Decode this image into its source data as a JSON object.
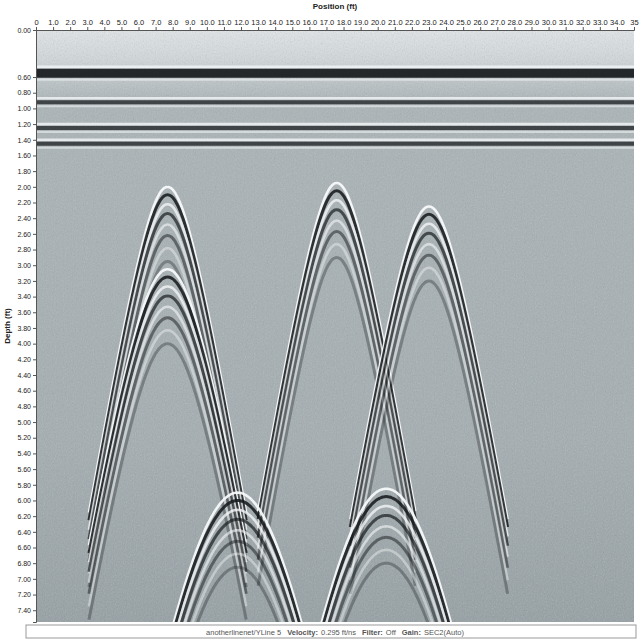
{
  "chart_data": {
    "type": "radargram",
    "x_label": "Position (ft)",
    "y_label": "Depth (ft)",
    "xlim": [
      0,
      35
    ],
    "ylim": [
      0,
      7.55
    ],
    "xticks": [
      0,
      {
        "value": 1,
        "label": "1.0"
      },
      {
        "value": 2,
        "label": "2.0"
      },
      {
        "value": 3,
        "label": "3.0"
      },
      {
        "value": 4,
        "label": "4.0"
      },
      {
        "value": 5,
        "label": "5.0"
      },
      {
        "value": 6,
        "label": "6.0"
      },
      {
        "value": 7,
        "label": "7.0"
      },
      {
        "value": 8,
        "label": "8.0"
      },
      {
        "value": 9,
        "label": "9.0"
      },
      {
        "value": 10,
        "label": "10.0"
      },
      {
        "value": 11,
        "label": "11.0"
      },
      {
        "value": 12,
        "label": "12.0"
      },
      {
        "value": 13,
        "label": "13.0"
      },
      {
        "value": 14,
        "label": "14.0"
      },
      {
        "value": 15,
        "label": "15.0"
      },
      {
        "value": 16,
        "label": "16.0"
      },
      {
        "value": 17,
        "label": "17.0"
      },
      {
        "value": 18,
        "label": "18.0"
      },
      {
        "value": 19,
        "label": "19.0"
      },
      {
        "value": 20,
        "label": "20.0"
      },
      {
        "value": 21,
        "label": "21.0"
      },
      {
        "value": 22,
        "label": "22.0"
      },
      {
        "value": 23,
        "label": "23.0"
      },
      {
        "value": 24,
        "label": "24.0"
      },
      {
        "value": 25,
        "label": "25.0"
      },
      {
        "value": 26,
        "label": "26.0"
      },
      {
        "value": 27,
        "label": "27.0"
      },
      {
        "value": 28,
        "label": "28.0"
      },
      {
        "value": 29,
        "label": "29.0"
      },
      {
        "value": 30,
        "label": "30.0"
      },
      {
        "value": 31,
        "label": "31.0"
      },
      {
        "value": 32,
        "label": "32.0"
      },
      {
        "value": 33,
        "label": "33.0"
      },
      {
        "value": 34,
        "label": "34.0"
      },
      35
    ],
    "yticks": [
      {
        "value": 0,
        "label": "0.00"
      },
      {
        "value": 0.6,
        "label": "0.60"
      },
      {
        "value": 0.8,
        "label": "0.80"
      },
      {
        "value": 1,
        "label": "1.00"
      },
      {
        "value": 1.2,
        "label": "1.20"
      },
      {
        "value": 1.4,
        "label": "1.40"
      },
      {
        "value": 1.6,
        "label": "1.60"
      },
      {
        "value": 1.8,
        "label": "1.80"
      },
      {
        "value": 2,
        "label": "2.00"
      },
      {
        "value": 2.2,
        "label": "2.20"
      },
      {
        "value": 2.4,
        "label": "2.40"
      },
      {
        "value": 2.6,
        "label": "2.60"
      },
      {
        "value": 2.8,
        "label": "2.80"
      },
      {
        "value": 3,
        "label": "3.00"
      },
      {
        "value": 3.2,
        "label": "3.20"
      },
      {
        "value": 3.4,
        "label": "3.40"
      },
      {
        "value": 3.6,
        "label": "3.60"
      },
      {
        "value": 3.8,
        "label": "3.80"
      },
      {
        "value": 4,
        "label": "4.00"
      },
      {
        "value": 4.2,
        "label": "4.20"
      },
      {
        "value": 4.4,
        "label": "4.40"
      },
      {
        "value": 4.6,
        "label": "4.60"
      },
      {
        "value": 4.8,
        "label": "4.80"
      },
      {
        "value": 5,
        "label": "5.00"
      },
      {
        "value": 5.2,
        "label": "5.20"
      },
      {
        "value": 5.4,
        "label": "5.40"
      },
      {
        "value": 5.6,
        "label": "5.60"
      },
      {
        "value": 5.8,
        "label": "5.80"
      },
      {
        "value": 6,
        "label": "6.00"
      },
      {
        "value": 6.2,
        "label": "6.20"
      },
      {
        "value": 6.4,
        "label": "6.40"
      },
      {
        "value": 6.6,
        "label": "6.60"
      },
      {
        "value": 6.8,
        "label": "6.80"
      },
      {
        "value": 7,
        "label": "7.00"
      },
      {
        "value": 7.2,
        "label": "7.20"
      },
      {
        "value": 7.4,
        "label": "7.40"
      }
    ],
    "layers": [
      0.55,
      0.92,
      1.25,
      1.45
    ],
    "hyperbolas": {
      "x": [
        7.7,
        7.7,
        17.6,
        23.0,
        11.8,
        20.5
      ],
      "y": [
        2.0,
        3.05,
        1.95,
        2.25,
        5.9,
        5.85
      ]
    },
    "footer": {
      "file": "anotherlinenet/YLine 5",
      "fields": [
        {
          "label": "Velocity:",
          "value": "0.295 ft/ns"
        },
        {
          "label": "Filter:",
          "value": "Off"
        },
        {
          "label": "Gain:",
          "value": "SEC2(Auto)"
        }
      ]
    }
  }
}
